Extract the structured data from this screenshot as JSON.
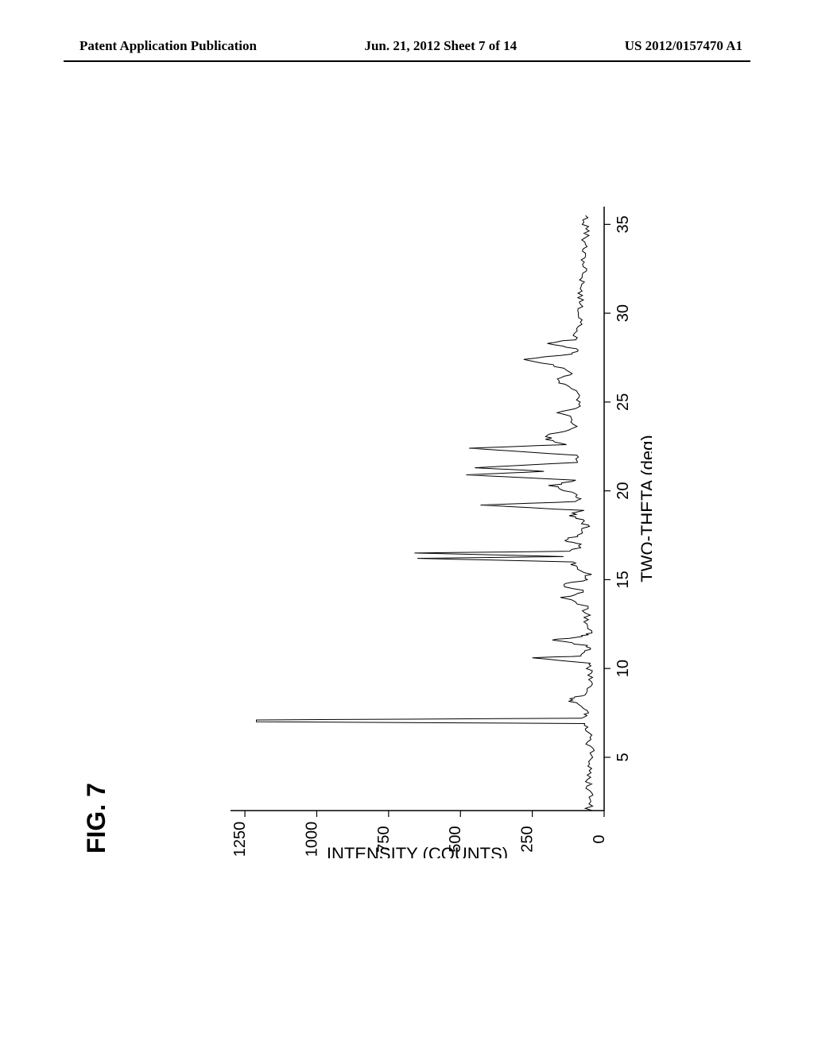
{
  "header": {
    "left": "Patent Application Publication",
    "center": "Jun. 21, 2012  Sheet 7 of 14",
    "right": "US 2012/0157470 A1"
  },
  "figure": {
    "label": "FIG. 7",
    "chart": {
      "type": "line",
      "xlabel": "TWO-THETA (deg)",
      "ylabel": "INTENSITY (COUNTS)",
      "xlim": [
        2,
        36
      ],
      "ylim": [
        0,
        1300
      ],
      "xticks": [
        5,
        10,
        15,
        20,
        25,
        30,
        35
      ],
      "yticks": [
        0,
        250,
        500,
        750,
        1000,
        1250
      ],
      "background_color": "#ffffff",
      "line_color": "#000000",
      "axis_color": "#000000",
      "tick_label_fontsize": 20,
      "axis_label_fontsize": 22,
      "line_width": 1,
      "rotation_deg": -90,
      "data": [
        [
          2.0,
          55
        ],
        [
          2.5,
          50
        ],
        [
          3.0,
          48
        ],
        [
          3.5,
          52
        ],
        [
          4.0,
          47
        ],
        [
          4.5,
          49
        ],
        [
          5.0,
          50
        ],
        [
          5.5,
          48
        ],
        [
          6.0,
          52
        ],
        [
          6.5,
          50
        ],
        [
          6.9,
          65
        ],
        [
          7.0,
          1210
        ],
        [
          7.1,
          1210
        ],
        [
          7.2,
          70
        ],
        [
          7.5,
          55
        ],
        [
          8.0,
          100
        ],
        [
          8.3,
          130
        ],
        [
          8.5,
          70
        ],
        [
          9.0,
          55
        ],
        [
          9.5,
          50
        ],
        [
          10.0,
          55
        ],
        [
          10.3,
          60
        ],
        [
          10.6,
          250
        ],
        [
          10.7,
          80
        ],
        [
          11.0,
          55
        ],
        [
          11.3,
          65
        ],
        [
          11.6,
          180
        ],
        [
          11.8,
          70
        ],
        [
          12.0,
          55
        ],
        [
          12.5,
          60
        ],
        [
          13.0,
          55
        ],
        [
          13.5,
          70
        ],
        [
          14.0,
          140
        ],
        [
          14.3,
          65
        ],
        [
          14.7,
          150
        ],
        [
          15.0,
          60
        ],
        [
          15.3,
          55
        ],
        [
          15.7,
          90
        ],
        [
          16.0,
          120
        ],
        [
          16.2,
          650
        ],
        [
          16.3,
          130
        ],
        [
          16.5,
          660
        ],
        [
          16.6,
          120
        ],
        [
          17.0,
          70
        ],
        [
          17.2,
          145
        ],
        [
          17.5,
          80
        ],
        [
          18.0,
          65
        ],
        [
          18.3,
          70
        ],
        [
          18.6,
          120
        ],
        [
          18.9,
          75
        ],
        [
          19.2,
          430
        ],
        [
          19.4,
          90
        ],
        [
          19.7,
          85
        ],
        [
          20.0,
          130
        ],
        [
          20.3,
          180
        ],
        [
          20.6,
          95
        ],
        [
          20.9,
          480
        ],
        [
          21.1,
          200
        ],
        [
          21.3,
          450
        ],
        [
          21.6,
          100
        ],
        [
          22.0,
          90
        ],
        [
          22.4,
          470
        ],
        [
          22.6,
          130
        ],
        [
          22.9,
          200
        ],
        [
          23.2,
          180
        ],
        [
          23.5,
          110
        ],
        [
          24.0,
          100
        ],
        [
          24.4,
          160
        ],
        [
          24.7,
          90
        ],
        [
          25.0,
          85
        ],
        [
          25.5,
          95
        ],
        [
          26.0,
          140
        ],
        [
          26.3,
          170
        ],
        [
          26.6,
          100
        ],
        [
          27.0,
          160
        ],
        [
          27.4,
          280
        ],
        [
          27.7,
          110
        ],
        [
          28.0,
          90
        ],
        [
          28.3,
          200
        ],
        [
          28.5,
          110
        ],
        [
          29.0,
          85
        ],
        [
          29.5,
          80
        ],
        [
          30.0,
          85
        ],
        [
          30.5,
          75
        ],
        [
          31.0,
          80
        ],
        [
          31.5,
          70
        ],
        [
          32.0,
          78
        ],
        [
          32.5,
          68
        ],
        [
          33.0,
          72
        ],
        [
          33.5,
          65
        ],
        [
          34.0,
          70
        ],
        [
          34.5,
          62
        ],
        [
          35.0,
          65
        ],
        [
          35.5,
          58
        ]
      ]
    }
  }
}
